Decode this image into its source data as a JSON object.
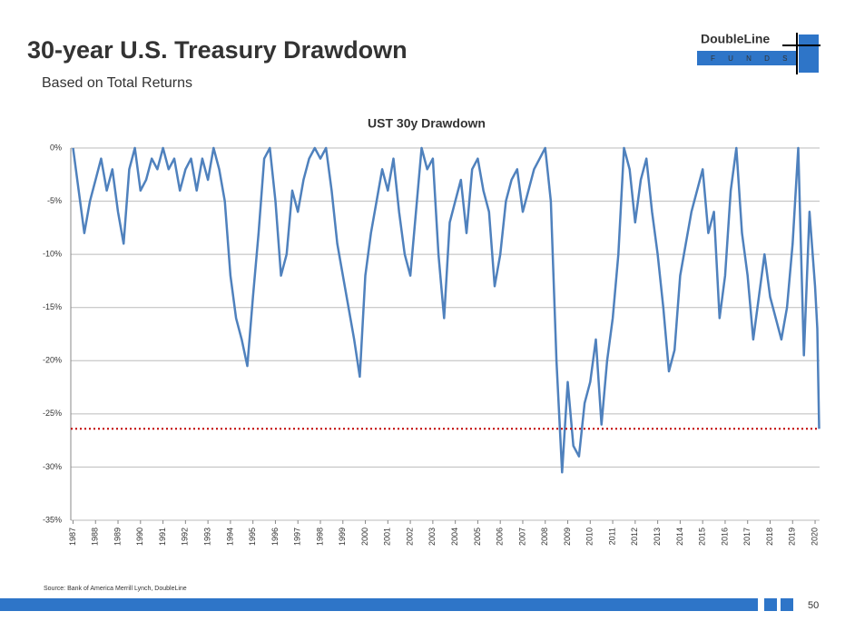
{
  "header": {
    "title": "30-year U.S. Treasury Drawdown",
    "subtitle": "Based on Total Returns",
    "logo": "DoubleLine",
    "logo_sub": "F U N D S"
  },
  "chart_data": {
    "type": "line",
    "title": "UST 30y Drawdown",
    "x": [
      1987,
      1987.25,
      1987.5,
      1987.75,
      1988,
      1988.25,
      1988.5,
      1988.75,
      1989,
      1989.25,
      1989.5,
      1989.75,
      1990,
      1990.25,
      1990.5,
      1990.75,
      1991,
      1991.25,
      1991.5,
      1991.75,
      1992,
      1992.25,
      1992.5,
      1992.75,
      1993,
      1993.25,
      1993.5,
      1993.75,
      1994,
      1994.25,
      1994.5,
      1994.75,
      1995,
      1995.25,
      1995.5,
      1995.75,
      1996,
      1996.25,
      1996.5,
      1996.75,
      1997,
      1997.25,
      1997.5,
      1997.75,
      1998,
      1998.25,
      1998.5,
      1998.75,
      1999,
      1999.25,
      1999.5,
      1999.75,
      2000,
      2000.25,
      2000.5,
      2000.75,
      2001,
      2001.25,
      2001.5,
      2001.75,
      2002,
      2002.25,
      2002.5,
      2002.75,
      2003,
      2003.25,
      2003.5,
      2003.75,
      2004,
      2004.25,
      2004.5,
      2004.75,
      2005,
      2005.25,
      2005.5,
      2005.75,
      2006,
      2006.25,
      2006.5,
      2006.75,
      2007,
      2007.25,
      2007.5,
      2007.75,
      2008,
      2008.25,
      2008.5,
      2008.75,
      2009,
      2009.25,
      2009.5,
      2009.75,
      2010,
      2010.25,
      2010.5,
      2010.75,
      2011,
      2011.25,
      2011.5,
      2011.75,
      2012,
      2012.25,
      2012.5,
      2012.75,
      2013,
      2013.25,
      2013.5,
      2013.75,
      2014,
      2014.25,
      2014.5,
      2014.75,
      2015,
      2015.25,
      2015.5,
      2015.75,
      2016,
      2016.25,
      2016.5,
      2016.75,
      2017,
      2017.25,
      2017.5,
      2017.75,
      2018,
      2018.25,
      2018.5,
      2018.75,
      2019,
      2019.25,
      2019.5,
      2019.75,
      2020,
      2020.1,
      2020.18
    ],
    "series": [
      {
        "name": "UST 30y Drawdown",
        "color": "#4f81bd",
        "values": [
          0,
          -4,
          -8,
          -5,
          -3,
          -1,
          -4,
          -2,
          -6,
          -9,
          -2,
          0,
          -4,
          -3,
          -1,
          -2,
          0,
          -2,
          -1,
          -4,
          -2,
          -1,
          -4,
          -1,
          -3,
          0,
          -2,
          -5,
          -12,
          -16,
          -18,
          -20.5,
          -14,
          -8,
          -1,
          0,
          -5,
          -12,
          -10,
          -4,
          -6,
          -3,
          -1,
          0,
          -1,
          0,
          -4,
          -9,
          -12,
          -15,
          -18,
          -21.5,
          -12,
          -8,
          -5,
          -2,
          -4,
          -1,
          -6,
          -10,
          -12,
          -6,
          0,
          -2,
          -1,
          -10,
          -16,
          -7,
          -5,
          -3,
          -8,
          -2,
          -1,
          -4,
          -6,
          -13,
          -10,
          -5,
          -3,
          -2,
          -6,
          -4,
          -2,
          -1,
          0,
          -5,
          -20,
          -30.5,
          -22,
          -28,
          -29,
          -24,
          -22,
          -18,
          -26,
          -20,
          -16,
          -10,
          0,
          -2,
          -7,
          -3,
          -1,
          -6,
          -10,
          -15,
          -21,
          -19,
          -12,
          -9,
          -6,
          -4,
          -2,
          -8,
          -6,
          -16,
          -12,
          -4,
          0,
          -8,
          -12,
          -18,
          -14,
          -10,
          -14,
          -16,
          -18,
          -15,
          -9,
          0,
          -19.5,
          -6,
          -13,
          -17,
          -26.4
        ]
      }
    ],
    "reference_line": {
      "value": -26.4,
      "color": "#c00000"
    },
    "xlim": [
      1986.9,
      2020.2
    ],
    "xticks": [
      1987,
      1988,
      1989,
      1990,
      1991,
      1992,
      1993,
      1994,
      1995,
      1996,
      1997,
      1998,
      1999,
      2000,
      2001,
      2002,
      2003,
      2004,
      2005,
      2006,
      2007,
      2008,
      2009,
      2010,
      2011,
      2012,
      2013,
      2014,
      2015,
      2016,
      2017,
      2018,
      2019,
      2020
    ],
    "ylim": [
      -35,
      0
    ],
    "yticks": [
      {
        "value": 0,
        "label": "0%"
      },
      {
        "value": -5,
        "label": "-5%"
      },
      {
        "value": -10,
        "label": "-10%"
      },
      {
        "value": -15,
        "label": "-15%"
      },
      {
        "value": -20,
        "label": "-20%"
      },
      {
        "value": -25,
        "label": "-25%"
      },
      {
        "value": -30,
        "label": "-30%"
      },
      {
        "value": -35,
        "label": "-35%"
      }
    ],
    "grid": true
  },
  "footer": {
    "source": "Source: Bank of America Merrill Lynch, DoubleLine",
    "page": "50"
  }
}
